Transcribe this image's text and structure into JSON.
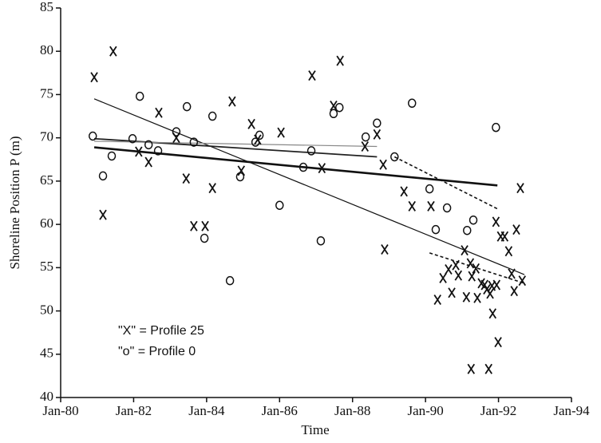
{
  "chart_data": {
    "type": "scatter",
    "x_label": "Time",
    "y_label": "Shoreline Position P (m)",
    "xlim": [
      1980,
      1994
    ],
    "ylim": [
      40,
      85
    ],
    "xticks": [
      {
        "value": 1980,
        "label": "Jan-80"
      },
      {
        "value": 1982,
        "label": "Jan-82"
      },
      {
        "value": 1984,
        "label": "Jan-84"
      },
      {
        "value": 1986,
        "label": "Jan-86"
      },
      {
        "value": 1988,
        "label": "Jan-88"
      },
      {
        "value": 1990,
        "label": "Jan-90"
      },
      {
        "value": 1992,
        "label": "Jan-92"
      },
      {
        "value": 1994,
        "label": "Jan-94"
      }
    ],
    "yticks": [
      40,
      45,
      50,
      55,
      60,
      65,
      70,
      75,
      80,
      85
    ],
    "series": [
      {
        "name": "\"X\" = Profile 25",
        "marker": "x",
        "color": "#111",
        "x": [
          1980.92,
          1981.16,
          1981.44,
          1982.14,
          1982.41,
          1982.69,
          1983.17,
          1983.44,
          1983.65,
          1983.96,
          1984.16,
          1984.7,
          1984.95,
          1985.23,
          1985.4,
          1986.04,
          1986.89,
          1987.16,
          1987.66,
          1987.48,
          1988.34,
          1988.67,
          1988.84,
          1988.88,
          1989.41,
          1989.63,
          1990.15,
          1990.33,
          1990.48,
          1990.63,
          1990.72,
          1990.83,
          1990.9,
          1991.07,
          1991.12,
          1991.23,
          1991.27,
          1991.38,
          1991.42,
          1991.53,
          1991.62,
          1991.68,
          1991.77,
          1991.82,
          1991.84,
          1991.95,
          1991.99,
          1991.93,
          1992.06,
          1992.17,
          1992.28,
          1992.36,
          1992.43,
          1992.49,
          1992.65,
          1992.6,
          1991.25,
          1991.73
        ],
        "values": [
          77,
          61.1,
          80,
          68.4,
          67.2,
          72.9,
          70,
          65.3,
          59.8,
          59.8,
          64.2,
          74.2,
          66.2,
          71.6,
          69.8,
          70.6,
          77.2,
          66.5,
          78.9,
          73.7,
          69,
          70.4,
          66.9,
          57.1,
          63.8,
          62.1,
          62.1,
          51.3,
          53.8,
          54.8,
          52.1,
          55.3,
          54.1,
          57,
          51.6,
          55.5,
          54,
          54.9,
          51.5,
          53.2,
          53,
          52.5,
          52,
          52.9,
          49.7,
          53,
          46.4,
          60.3,
          58.6,
          58.6,
          56.9,
          54.3,
          52.3,
          59.4,
          53.5,
          64.2,
          43.3,
          43.3
        ]
      },
      {
        "name": "\"o\" = Profile 0",
        "marker": "o",
        "color": "#111",
        "x": [
          1980.88,
          1981.16,
          1981.4,
          1981.97,
          1982.17,
          1982.41,
          1982.67,
          1983.17,
          1983.46,
          1983.65,
          1983.94,
          1984.16,
          1984.64,
          1984.92,
          1985.34,
          1985.45,
          1986,
          1986.65,
          1986.87,
          1987.13,
          1987.48,
          1987.64,
          1988.36,
          1988.67,
          1989.15,
          1989.63,
          1990.11,
          1990.28,
          1990.59,
          1991.14,
          1991.31,
          1991.93
        ],
        "values": [
          70.2,
          65.6,
          67.9,
          69.9,
          74.8,
          69.2,
          68.5,
          70.7,
          73.6,
          69.5,
          58.4,
          72.5,
          53.5,
          65.5,
          69.5,
          70.3,
          62.2,
          66.6,
          68.5,
          58.1,
          72.8,
          73.5,
          70.1,
          71.7,
          67.8,
          74,
          64.1,
          59.4,
          61.9,
          59.3,
          60.5,
          71.2
        ]
      }
    ],
    "trend_lines": [
      {
        "style": "thin",
        "x": [
          1980.92,
          1992.71
        ],
        "values": [
          74.5,
          54.2
        ]
      },
      {
        "style": "thick",
        "x": [
          1980.92,
          1991.97
        ],
        "values": [
          68.9,
          64.5
        ]
      },
      {
        "style": "medium",
        "x": [
          1980.92,
          1988.67
        ],
        "values": [
          69.9,
          67.8
        ]
      },
      {
        "style": "faint",
        "x": [
          1980.92,
          1988.67
        ],
        "values": [
          69.6,
          69.0
        ]
      },
      {
        "style": "dashed",
        "x": [
          1989.15,
          1991.97
        ],
        "values": [
          67.8,
          61.8
        ]
      },
      {
        "style": "dashed",
        "x": [
          1990.11,
          1992.71
        ],
        "values": [
          56.7,
          53.2
        ]
      }
    ]
  }
}
